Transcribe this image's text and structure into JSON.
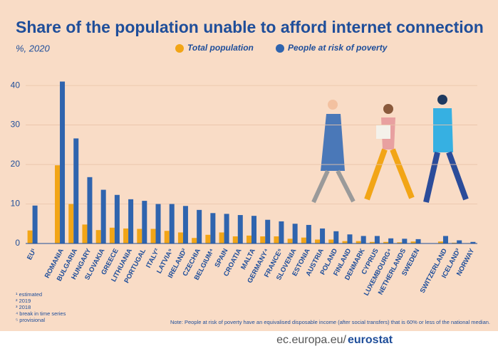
{
  "chart_data": {
    "type": "bar",
    "title": "Share of the population unable to afford internet connection",
    "subtitle": "%, 2020",
    "categories": [
      "EU¹",
      null,
      "ROMANIA",
      "BULGARIA",
      "HUNGARY",
      "SLOVAKIA",
      "GREECE",
      "LITHUANIA",
      "PORTUGAL",
      "ITALY²",
      "LATVIA⁵",
      "IRELAND²",
      "CZECHIA",
      "BELGIUM⁴",
      "SPAIN",
      "CROATIA",
      "MALTA",
      "GERMANY⁴",
      "FRANCE⁵",
      "SLOVENIA",
      "ESTONIA",
      "AUSTRIA",
      "POLAND",
      "FINLAND",
      "DENMARK",
      "CYPRUS",
      "LUXEMBOURG⁴",
      "NETHERLANDS",
      "SWEDEN",
      null,
      "SWITZERLAND",
      "ICELAND³",
      "NORWAY"
    ],
    "series": [
      {
        "name": "Total population",
        "color": "#f2a516",
        "values": [
          3.3,
          null,
          19.8,
          10,
          4.8,
          3.4,
          4,
          3.8,
          3.7,
          3.7,
          3.2,
          2.8,
          1.4,
          2.2,
          2.8,
          1.8,
          2,
          1.8,
          1.8,
          1.2,
          1.5,
          1,
          1,
          0.6,
          0.6,
          0.4,
          0.4,
          0.3,
          0.5,
          null,
          0.5,
          0.2,
          0.1
        ]
      },
      {
        "name": "People at risk of poverty",
        "color": "#2f64ae",
        "values": [
          9.6,
          null,
          41,
          26.6,
          16.8,
          13.6,
          12.3,
          11.2,
          10.8,
          10,
          10,
          9.5,
          8.5,
          7.7,
          7.5,
          7.2,
          7,
          6,
          5.6,
          5,
          4.7,
          3.8,
          3.1,
          2.3,
          1.9,
          1.9,
          1.3,
          1.2,
          1.1,
          null,
          1.9,
          0.8,
          0.4
        ]
      }
    ],
    "ylim": [
      0,
      42
    ],
    "yticks": [
      0,
      10,
      20,
      30,
      40
    ],
    "grid": true,
    "footnotes": [
      "¹ estimated",
      "² 2019",
      "³ 2018",
      "⁴ break in time series",
      "⁵ provisional"
    ],
    "note": "Note: People at risk of poverty have an equivalised disposable income (after social transfers) that is 60% or less of the national median.",
    "source": "ec.europa.eu/",
    "brand": "eurostat"
  }
}
